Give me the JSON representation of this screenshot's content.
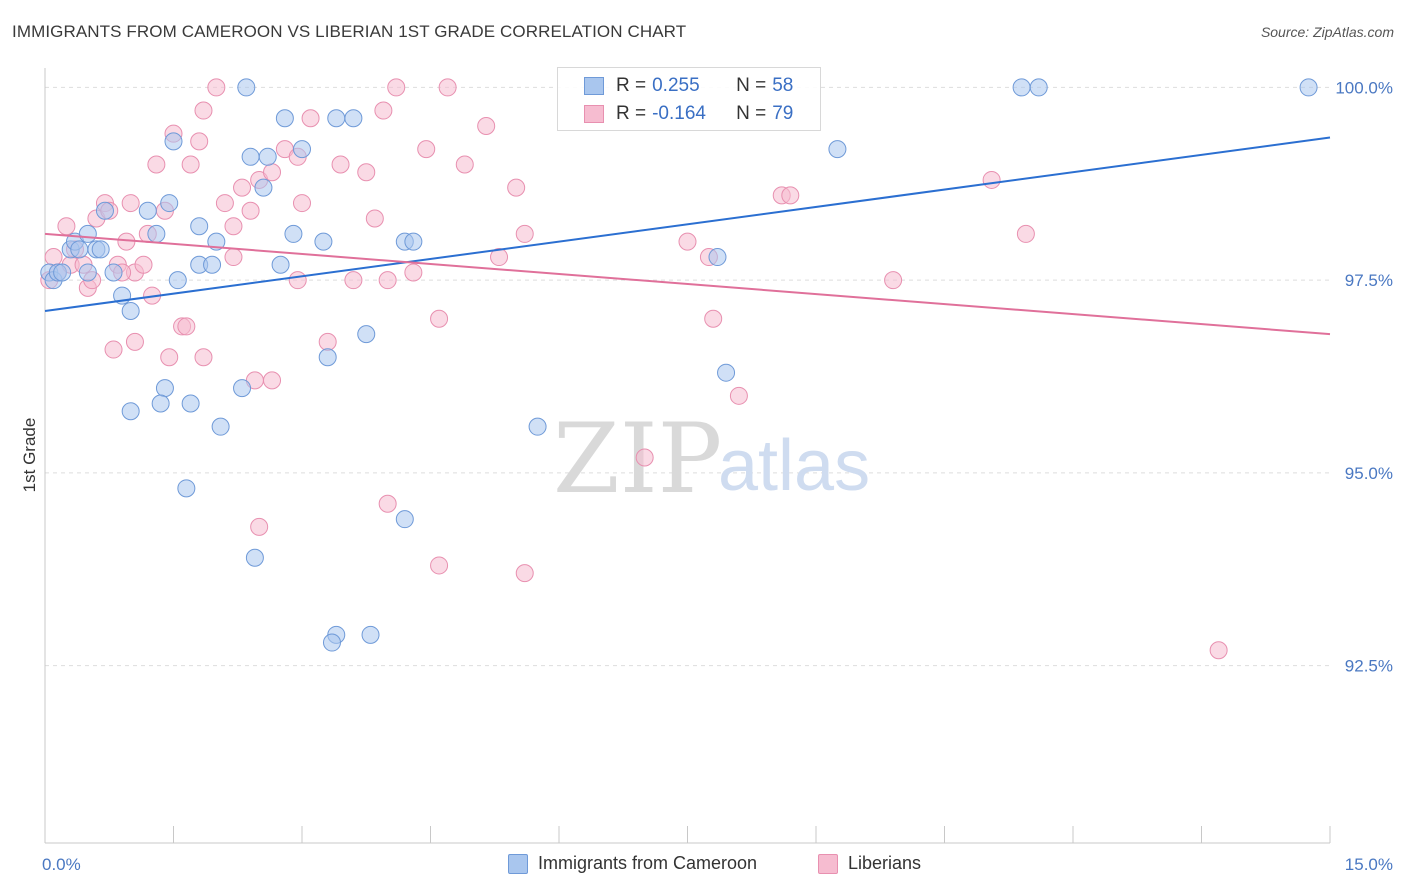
{
  "title": "IMMIGRANTS FROM CAMEROON VS LIBERIAN 1ST GRADE CORRELATION CHART",
  "source": "Source: ZipAtlas.com",
  "watermark": {
    "zip": "ZIP",
    "atlas": "atlas"
  },
  "legend_top": {
    "rows": [
      {
        "r_label": "R =",
        "r_value": "0.255",
        "n_label": "N =",
        "n_value": "58"
      },
      {
        "r_label": "R =",
        "r_value": "-0.164",
        "n_label": "N =",
        "n_value": "79"
      }
    ]
  },
  "legend_bottom": [
    "Immigrants from Cameroon",
    "Liberians"
  ],
  "colors": {
    "blue_fill": "#a9c6ee",
    "blue_stroke": "#6f9ad8",
    "blue_line": "#2b6fd1",
    "pink_fill": "#f6bcd0",
    "pink_stroke": "#e890b0",
    "pink_line": "#e0709a",
    "grid": "#dddddd",
    "tick_label": "#4a78c2"
  },
  "chart_data": {
    "type": "scatter",
    "title": "IMMIGRANTS FROM CAMEROON VS LIBERIAN 1ST GRADE CORRELATION CHART",
    "xlabel": "",
    "ylabel": "1st Grade",
    "xlim": [
      0,
      15
    ],
    "ylim": [
      90.2,
      100.2
    ],
    "x_tick_labels": [
      "0.0%",
      "15.0%"
    ],
    "y_ticks": [
      92.5,
      95.0,
      97.5,
      100.0
    ],
    "y_tick_labels": [
      "92.5%",
      "95.0%",
      "97.5%",
      "100.0%"
    ],
    "grid": true,
    "legend_position": "bottom",
    "series": [
      {
        "name": "Immigrants from Cameroon",
        "r": 0.255,
        "n": 58,
        "trend": {
          "x": [
            0,
            15
          ],
          "y": [
            97.1,
            99.35
          ]
        },
        "points": [
          [
            0.05,
            97.6
          ],
          [
            0.1,
            97.5
          ],
          [
            0.15,
            97.6
          ],
          [
            0.3,
            97.9
          ],
          [
            0.35,
            98.0
          ],
          [
            0.5,
            97.6
          ],
          [
            0.5,
            98.1
          ],
          [
            0.6,
            97.9
          ],
          [
            0.7,
            98.4
          ],
          [
            0.8,
            97.6
          ],
          [
            0.9,
            97.3
          ],
          [
            1.0,
            97.1
          ],
          [
            1.2,
            98.4
          ],
          [
            1.3,
            98.1
          ],
          [
            1.45,
            98.5
          ],
          [
            1.5,
            99.3
          ],
          [
            1.8,
            98.2
          ],
          [
            2.0,
            98.0
          ],
          [
            1.8,
            97.7
          ],
          [
            1.95,
            97.7
          ],
          [
            2.3,
            96.1
          ],
          [
            2.35,
            100.0
          ],
          [
            2.4,
            99.1
          ],
          [
            2.55,
            98.7
          ],
          [
            2.6,
            99.1
          ],
          [
            2.8,
            99.6
          ],
          [
            2.9,
            98.1
          ],
          [
            3.0,
            99.2
          ],
          [
            3.25,
            98.0
          ],
          [
            3.4,
            99.6
          ],
          [
            3.6,
            99.6
          ],
          [
            3.75,
            96.8
          ],
          [
            3.3,
            96.5
          ],
          [
            4.2,
            98.0
          ],
          [
            4.3,
            98.0
          ],
          [
            1.4,
            96.1
          ],
          [
            1.0,
            95.8
          ],
          [
            1.35,
            95.9
          ],
          [
            1.7,
            95.9
          ],
          [
            2.05,
            95.6
          ],
          [
            1.65,
            94.8
          ],
          [
            2.45,
            93.9
          ],
          [
            4.2,
            94.4
          ],
          [
            3.4,
            92.9
          ],
          [
            3.35,
            92.8
          ],
          [
            3.8,
            92.9
          ],
          [
            5.75,
            95.6
          ],
          [
            7.95,
            96.3
          ],
          [
            7.85,
            97.8
          ],
          [
            9.25,
            99.2
          ],
          [
            11.4,
            100.0
          ],
          [
            11.6,
            100.0
          ],
          [
            14.75,
            100.0
          ],
          [
            0.4,
            97.9
          ],
          [
            0.2,
            97.6
          ],
          [
            0.65,
            97.9
          ],
          [
            1.55,
            97.5
          ],
          [
            2.75,
            97.7
          ]
        ]
      },
      {
        "name": "Liberians",
        "r": -0.164,
        "n": 79,
        "trend": {
          "x": [
            0,
            15
          ],
          "y": [
            98.1,
            96.8
          ]
        },
        "points": [
          [
            0.05,
            97.5
          ],
          [
            0.1,
            97.8
          ],
          [
            0.15,
            97.6
          ],
          [
            0.25,
            98.2
          ],
          [
            0.35,
            97.9
          ],
          [
            0.5,
            97.4
          ],
          [
            0.55,
            97.5
          ],
          [
            0.6,
            98.3
          ],
          [
            0.7,
            98.5
          ],
          [
            0.75,
            98.4
          ],
          [
            0.85,
            97.7
          ],
          [
            0.95,
            98.0
          ],
          [
            1.0,
            98.5
          ],
          [
            1.05,
            97.6
          ],
          [
            1.15,
            97.7
          ],
          [
            1.2,
            98.1
          ],
          [
            1.3,
            99.0
          ],
          [
            1.4,
            98.4
          ],
          [
            1.5,
            99.4
          ],
          [
            1.6,
            96.9
          ],
          [
            1.7,
            99.0
          ],
          [
            1.8,
            99.3
          ],
          [
            1.85,
            99.7
          ],
          [
            2.0,
            100.0
          ],
          [
            2.1,
            98.5
          ],
          [
            2.2,
            98.2
          ],
          [
            2.3,
            98.7
          ],
          [
            2.4,
            98.4
          ],
          [
            2.5,
            98.8
          ],
          [
            2.65,
            98.9
          ],
          [
            2.8,
            99.2
          ],
          [
            2.95,
            99.1
          ],
          [
            3.0,
            98.5
          ],
          [
            3.1,
            99.6
          ],
          [
            3.3,
            96.7
          ],
          [
            3.45,
            99.0
          ],
          [
            3.6,
            97.5
          ],
          [
            3.75,
            98.9
          ],
          [
            3.85,
            98.3
          ],
          [
            3.95,
            99.7
          ],
          [
            4.0,
            97.5
          ],
          [
            4.1,
            100.0
          ],
          [
            4.3,
            97.6
          ],
          [
            4.45,
            99.2
          ],
          [
            4.6,
            97.0
          ],
          [
            4.7,
            100.0
          ],
          [
            4.9,
            99.0
          ],
          [
            5.15,
            99.5
          ],
          [
            5.3,
            97.8
          ],
          [
            5.5,
            98.7
          ],
          [
            5.6,
            98.1
          ],
          [
            0.8,
            96.6
          ],
          [
            1.05,
            96.7
          ],
          [
            1.45,
            96.5
          ],
          [
            1.65,
            96.9
          ],
          [
            1.85,
            96.5
          ],
          [
            2.45,
            96.2
          ],
          [
            2.65,
            96.2
          ],
          [
            2.5,
            94.3
          ],
          [
            4.0,
            94.6
          ],
          [
            4.6,
            93.8
          ],
          [
            5.6,
            93.7
          ],
          [
            7.5,
            98.0
          ],
          [
            7.75,
            97.8
          ],
          [
            8.1,
            96.0
          ],
          [
            8.6,
            98.6
          ],
          [
            7.0,
            95.2
          ],
          [
            9.9,
            97.5
          ],
          [
            11.05,
            98.8
          ],
          [
            11.45,
            98.1
          ],
          [
            13.7,
            92.7
          ],
          [
            8.7,
            98.6
          ],
          [
            0.3,
            97.7
          ],
          [
            0.45,
            97.7
          ],
          [
            0.9,
            97.6
          ],
          [
            1.25,
            97.3
          ],
          [
            2.95,
            97.5
          ],
          [
            7.8,
            97.0
          ],
          [
            2.2,
            97.8
          ]
        ]
      }
    ]
  }
}
